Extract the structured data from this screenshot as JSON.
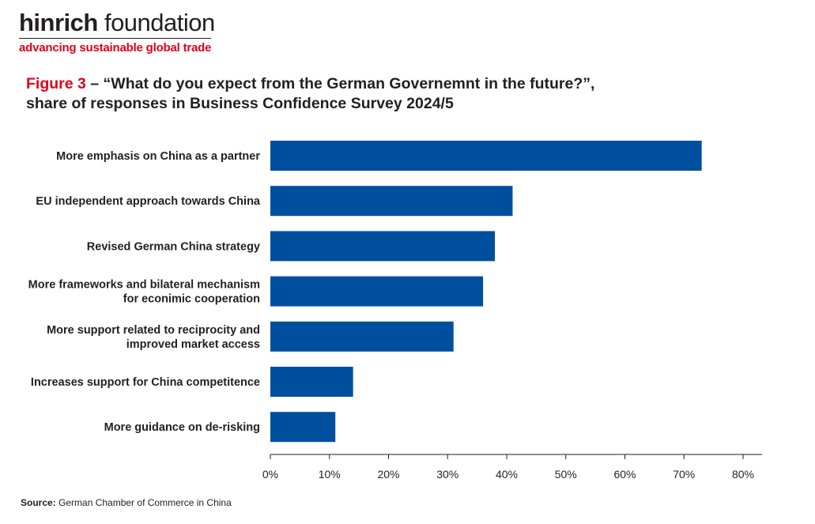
{
  "brand": {
    "name_bold": "hinrich",
    "name_rest": " foundation",
    "tagline": "advancing sustainable global trade",
    "accent_color": "#e1001a"
  },
  "title": {
    "figure_label": "Figure 3",
    "text_line1": " – “What do you expect from the German Governemnt in the future?”,",
    "text_line2": "share of responses in Business Confidence Survey 2024/5"
  },
  "source": {
    "label": "Source:",
    "text": " German Chamber of Commerce in China"
  },
  "chart_data": {
    "type": "bar",
    "orientation": "horizontal",
    "categories": [
      [
        "More emphasis on China as a partner"
      ],
      [
        "EU independent approach towards China"
      ],
      [
        "Revised German China strategy"
      ],
      [
        "More frameworks and bilateral mechanism",
        "for econimic cooperation"
      ],
      [
        "More support related to reciprocity and",
        "improved market access"
      ],
      [
        "Increases support for China competitence"
      ],
      [
        "More guidance on de-risking"
      ]
    ],
    "values": [
      73,
      41,
      38,
      36,
      31,
      14,
      11
    ],
    "xlim": [
      0,
      80
    ],
    "xticks": [
      "0%",
      "10%",
      "20%",
      "30%",
      "40%",
      "50%",
      "60%",
      "70%",
      "80%"
    ],
    "grid": false,
    "bar_color": "#004f9f"
  }
}
